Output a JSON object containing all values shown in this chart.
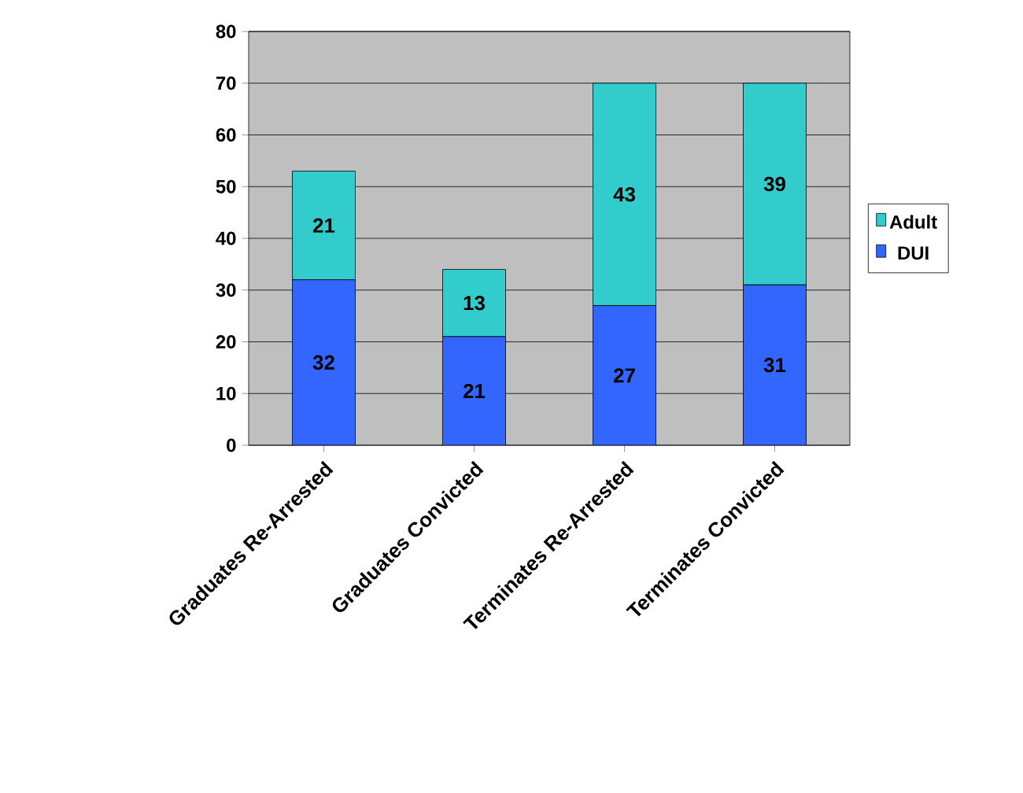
{
  "chart_data": {
    "type": "bar",
    "stacked": true,
    "categories": [
      "Graduates Re-Arrested",
      "Graduates Convicted",
      "Terminates Re-Arrested",
      "Terminates Convicted"
    ],
    "series": [
      {
        "name": "DUI",
        "color": "#3366ff",
        "values": [
          32,
          21,
          27,
          31
        ]
      },
      {
        "name": "Adult",
        "color": "#33cccc",
        "values": [
          21,
          13,
          43,
          39
        ]
      }
    ],
    "ylim": [
      0,
      80
    ],
    "yticks": [
      0,
      10,
      20,
      30,
      40,
      50,
      60,
      70,
      80
    ],
    "grid": "y",
    "legend": "right",
    "data_labels": true
  }
}
